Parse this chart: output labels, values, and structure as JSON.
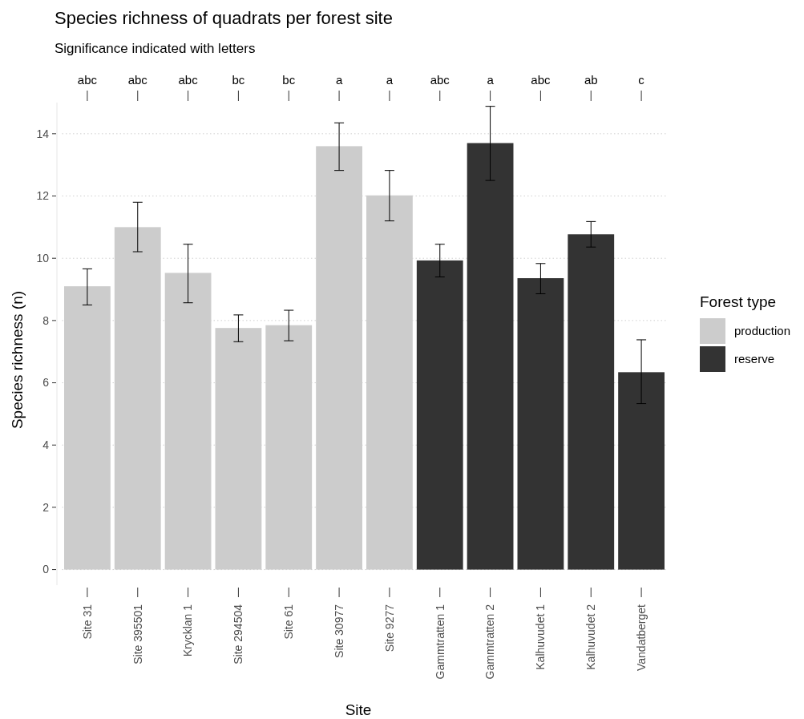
{
  "chart_data": {
    "type": "bar",
    "title": "Species richness of quadrats per forest site",
    "subtitle": "Significance indicated with letters",
    "xlabel": "Site",
    "ylabel": "Species richness (n)",
    "legend_title": "Forest type",
    "categories": [
      "Site 31",
      "Site 395501",
      "Krycklan 1",
      "Site 294504",
      "Site 61",
      "Site 30977",
      "Site 9277",
      "Gammtratten 1",
      "Gammtratten 2",
      "Kalhuvudet 1",
      "Kalhuvudet 2",
      "Vandatberget"
    ],
    "series": [
      {
        "name": "production",
        "color": "#cccccc",
        "values": [
          9.1,
          11.0,
          9.53,
          7.76,
          7.85,
          13.6,
          12.02,
          null,
          null,
          null,
          null,
          null
        ],
        "errors": [
          [
            8.5,
            9.66
          ],
          [
            10.21,
            11.8
          ],
          [
            8.57,
            10.45
          ],
          [
            7.32,
            8.18
          ],
          [
            7.35,
            8.33
          ],
          [
            12.82,
            14.35
          ],
          [
            11.2,
            12.82
          ],
          null,
          null,
          null,
          null,
          null
        ]
      },
      {
        "name": "reserve",
        "color": "#333333",
        "values": [
          null,
          null,
          null,
          null,
          null,
          null,
          null,
          9.93,
          13.7,
          9.36,
          10.77,
          6.34
        ],
        "errors": [
          null,
          null,
          null,
          null,
          null,
          null,
          null,
          [
            9.4,
            10.45
          ],
          [
            12.5,
            14.88
          ],
          [
            8.86,
            9.83
          ],
          [
            10.36,
            11.18
          ],
          [
            5.33,
            7.38
          ]
        ]
      }
    ],
    "annotations": [
      {
        "text": "abc",
        "x": "Site 31"
      },
      {
        "text": "abc",
        "x": "Site 395501"
      },
      {
        "text": "abc",
        "x": "Krycklan 1"
      },
      {
        "text": "bc",
        "x": "Site 294504"
      },
      {
        "text": "bc",
        "x": "Site 61"
      },
      {
        "text": "a",
        "x": "Site 30977"
      },
      {
        "text": "a",
        "x": "Site 9277"
      },
      {
        "text": "abc",
        "x": "Gammtratten 1"
      },
      {
        "text": "a",
        "x": "Gammtratten 2"
      },
      {
        "text": "abc",
        "x": "Kalhuvudet 1"
      },
      {
        "text": "ab",
        "x": "Kalhuvudet 2"
      },
      {
        "text": "c",
        "x": "Vandatberget"
      }
    ],
    "ylim": [
      -0.5,
      15.0
    ],
    "yticks": [
      0,
      2,
      4,
      6,
      8,
      10,
      12,
      14
    ],
    "grid": "y",
    "legend": "right"
  }
}
